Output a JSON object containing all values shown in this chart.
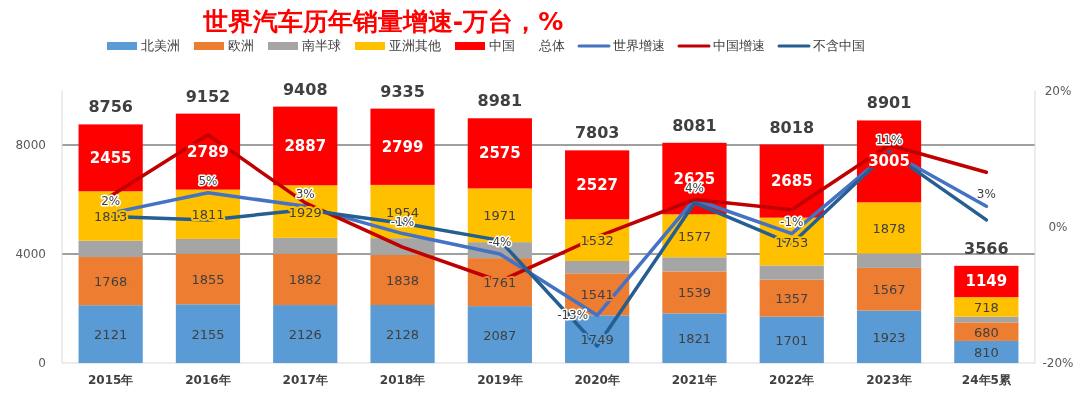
{
  "chart_data": {
    "type": "bar",
    "stacked": true,
    "title": "世界汽车历年销量增速-万台，%",
    "categories": [
      "2015年",
      "2016年",
      "2017年",
      "2018年",
      "2019年",
      "2020年",
      "2021年",
      "2022年",
      "2023年",
      "24年5累"
    ],
    "series": [
      {
        "name": "北美洲",
        "color": "#5b9bd5",
        "values": [
          2121,
          2155,
          2126,
          2128,
          2087,
          1749,
          1821,
          1701,
          1923,
          810
        ],
        "value_labels": [
          "2121",
          "2155",
          "2126",
          "2128",
          "2087",
          "1749",
          "1821",
          "1701",
          "1923",
          "810"
        ]
      },
      {
        "name": "欧洲",
        "color": "#ed7d31",
        "values": [
          1768,
          1855,
          1882,
          1838,
          1761,
          1541,
          1539,
          1357,
          1567,
          680
        ],
        "value_labels": [
          "1768",
          "1855",
          "1882",
          "1838",
          "1761",
          "1541",
          "1539",
          "1357",
          "1567",
          "680"
        ]
      },
      {
        "name": "南半球",
        "color": "#a5a5a5",
        "values": [
          599,
          542,
          584,
          616,
          587,
          454,
          519,
          522,
          528,
          209
        ]
      },
      {
        "name": "亚洲其他",
        "color": "#ffc000",
        "values": [
          1813,
          1811,
          1929,
          1954,
          1971,
          1532,
          1577,
          1753,
          1878,
          718
        ],
        "value_labels": [
          "1813",
          "1811",
          "1929",
          "1954",
          "1971",
          "1532",
          "1577",
          "1753",
          "1878",
          "718"
        ]
      },
      {
        "name": "中国",
        "color": "#ff0000",
        "values": [
          2455,
          2789,
          2887,
          2799,
          2575,
          2527,
          2625,
          2685,
          3005,
          1149
        ],
        "value_labels": [
          "2455",
          "2789",
          "2887",
          "2799",
          "2575",
          "2527",
          "2625",
          "2685",
          "3005",
          "1149"
        ]
      },
      {
        "name": "世界增速",
        "type": "line",
        "axis": "y2",
        "color": "#4472c4",
        "values": [
          2,
          5,
          3,
          -1,
          -4,
          -13,
          4,
          -1,
          11,
          3
        ],
        "value_labels": [
          "2%",
          "5%",
          "3%",
          "-1%",
          "-4%",
          "-13%",
          "4%",
          "-1%",
          "11%",
          "3%"
        ]
      },
      {
        "name": "中国增速",
        "type": "line",
        "axis": "y2",
        "color": "#c00000",
        "values": [
          4.5,
          13.5,
          3.5,
          -3,
          -8,
          -1.5,
          4,
          2.5,
          12,
          8
        ]
      },
      {
        "name": "不含中国",
        "type": "line",
        "axis": "y2",
        "color": "#255e91",
        "values": [
          1.5,
          1,
          2.5,
          0.5,
          -2,
          -17.5,
          3.5,
          -2.5,
          11,
          1
        ]
      }
    ],
    "totals": [
      "8756",
      "9152",
      "9408",
      "9335",
      "8981",
      "7803",
      "8081",
      "8018",
      "8901",
      "3566"
    ],
    "annotations": [
      "总体"
    ],
    "ylim": [
      0,
      10000
    ],
    "yticks": [
      0,
      4000,
      8000
    ],
    "y2lim": [
      -20,
      20
    ],
    "y2ticks": [
      {
        "value": -20,
        "label": "-20%"
      },
      {
        "value": 0,
        "label": "0%"
      },
      {
        "value": 20,
        "label": "20%"
      }
    ],
    "grid": "y",
    "legend": "top"
  }
}
